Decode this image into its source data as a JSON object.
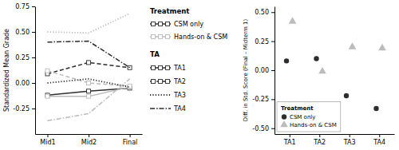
{
  "chart_data": [
    {
      "type": "line",
      "categories": [
        "Mid1",
        "Mid2",
        "Final"
      ],
      "y_label": "Standardized Mean Grade",
      "ylim": [
        -0.5,
        0.75
      ],
      "yticks": [
        -0.25,
        {
          "value": 0.0,
          "label": "0.00"
        },
        0.25,
        {
          "value": 0.5,
          "label": "0.50"
        },
        0.75
      ],
      "grid": false,
      "group_title": "Treatment",
      "legend_title": "TA",
      "series": [
        {
          "name": "TA1",
          "group": "CSM only",
          "color": "#2d2d2d",
          "line_style": "solid",
          "marker": "square",
          "values": [
            -0.12,
            -0.08,
            -0.05
          ]
        },
        {
          "name": "TA1",
          "group": "Hands-on & CSM",
          "color": "#bbbbbb",
          "line_style": "solid",
          "marker": "square",
          "values": [
            -0.13,
            -0.13,
            -0.04
          ]
        },
        {
          "name": "TA2",
          "group": "CSM only",
          "color": "#2d2d2d",
          "line_style": "dashed",
          "marker": "square",
          "values": [
            0.09,
            0.2,
            0.15
          ]
        },
        {
          "name": "TA2",
          "group": "Hands-on & CSM",
          "color": "#bbbbbb",
          "line_style": "dashed",
          "marker": "square",
          "values": [
            0.12,
            0.0,
            -0.03
          ]
        },
        {
          "name": "TA3",
          "group": "CSM only",
          "color": "#2d2d2d",
          "line_style": "dotted",
          "marker": "none",
          "values": [
            0.0,
            0.04,
            -0.04
          ]
        },
        {
          "name": "TA3",
          "group": "Hands-on & CSM",
          "color": "#bbbbbb",
          "line_style": "dotted",
          "marker": "none",
          "values": [
            0.5,
            0.49,
            0.68
          ]
        },
        {
          "name": "TA4",
          "group": "CSM only",
          "color": "#2d2d2d",
          "line_style": "dashdot",
          "marker": "none",
          "values": [
            0.4,
            0.41,
            0.15
          ]
        },
        {
          "name": "TA4",
          "group": "Hands-on & CSM",
          "color": "#bbbbbb",
          "line_style": "dashdot",
          "marker": "none",
          "values": [
            -0.37,
            -0.3,
            0.04
          ]
        }
      ]
    },
    {
      "type": "scatter",
      "categories": [
        "TA1",
        "TA2",
        "TA3",
        "TA4"
      ],
      "y_label": "Diff. in Std. Score (Final – Midterm 1)",
      "ylim": [
        -0.55,
        0.55
      ],
      "yticks": [
        {
          "value": -0.5,
          "label": "-0.50"
        },
        -0.25,
        {
          "value": 0.0,
          "label": "0.00"
        },
        0.25,
        {
          "value": 0.5,
          "label": "0.50"
        }
      ],
      "grid": false,
      "legend": "lower left",
      "legend_title": "Treatment",
      "series": [
        {
          "name": "CSM only",
          "color": "#2d2d2d",
          "marker": "circle",
          "values": [
            0.08,
            0.1,
            -0.22,
            -0.33
          ]
        },
        {
          "name": "Hands-on & CSM",
          "color": "#bbbbbb",
          "marker": "triangle",
          "values": [
            0.42,
            -0.01,
            0.2,
            0.19
          ]
        }
      ]
    }
  ]
}
